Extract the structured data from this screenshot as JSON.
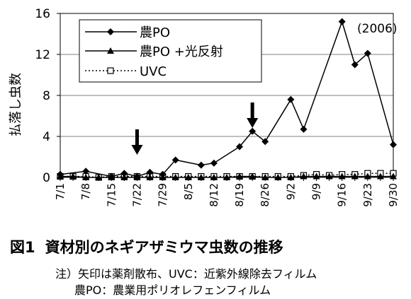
{
  "chart_data": {
    "type": "line",
    "title": "",
    "annotation": "(2006)",
    "ylabel": "払落し虫数",
    "xlabel": "",
    "ylim": [
      0,
      16
    ],
    "yticks": [
      "0",
      "4",
      "8",
      "12",
      "16"
    ],
    "ytick_values": [
      0,
      4,
      8,
      12,
      16
    ],
    "categories": [
      "7/1",
      "7/8",
      "7/15",
      "7/22",
      "7/29",
      "8/5",
      "8/12",
      "8/19",
      "8/26",
      "9/2",
      "9/9",
      "9/16",
      "9/23",
      "9/30"
    ],
    "grid": "horizontal",
    "legend_position": "top-left",
    "x": [
      "7/1",
      "7/4",
      "7/8",
      "7/11",
      "7/15",
      "7/18",
      "7/22",
      "7/25",
      "7/29",
      "8/1",
      "8/5",
      "8/9",
      "8/12",
      "8/15",
      "8/19",
      "8/22",
      "8/26",
      "8/29",
      "9/2",
      "9/5",
      "9/9",
      "9/12",
      "9/16",
      "9/19",
      "9/23",
      "9/26",
      "9/30"
    ],
    "series": [
      {
        "name": "農PO",
        "marker": "diamond",
        "line": "solid",
        "values": [
          0.3,
          null,
          0.6,
          null,
          0.1,
          0.4,
          0.1,
          0.5,
          0.3,
          1.7,
          null,
          1.2,
          1.4,
          null,
          3.0,
          4.5,
          3.5,
          null,
          7.6,
          4.7,
          15.2,
          11.0,
          12.1,
          3.2,
          null,
          null,
          null
        ],
        "x_index": [
          0,
          null,
          2,
          null,
          4,
          5,
          6,
          7,
          8,
          9,
          null,
          11,
          12,
          null,
          14,
          15,
          16,
          null,
          18,
          19,
          22,
          23,
          24,
          26,
          null,
          null,
          null
        ]
      },
      {
        "name": "農PO +光反射",
        "marker": "triangle",
        "line": "solid",
        "values": [
          0.1,
          0.1,
          0.0,
          0.0,
          0.0,
          0.0,
          0.0,
          0.0,
          0.0,
          0.0,
          0.0,
          0.0,
          0.0,
          0.0,
          0.1,
          0.1,
          0.0,
          0.0,
          0.0,
          0.1,
          0.1,
          0.1,
          0.1,
          0.1,
          0.1,
          0.1,
          0.1
        ]
      },
      {
        "name": "UVC",
        "marker": "square-open",
        "line": "dotted",
        "values": [
          0.1,
          0.1,
          0.1,
          0.0,
          0.1,
          0.1,
          0.1,
          0.1,
          0.1,
          0.1,
          0.1,
          0.1,
          0.1,
          0.1,
          0.1,
          0.1,
          0.1,
          0.1,
          0.1,
          0.2,
          0.3,
          0.2,
          0.3,
          0.3,
          0.4,
          0.4,
          0.4
        ]
      }
    ],
    "arrows_at": [
      "7/22",
      "8/22"
    ]
  },
  "caption": {
    "number": "図1",
    "title": "資材別のネギアザミウマ虫数の推移",
    "note1": "注）矢印は薬剤散布、UVC：近紫外線除去フィルム",
    "note2": "農PO：農業用ポリオレフェンフィルム"
  },
  "colors": {
    "line": "#000000",
    "grid": "#808080",
    "background": "#ffffff"
  }
}
